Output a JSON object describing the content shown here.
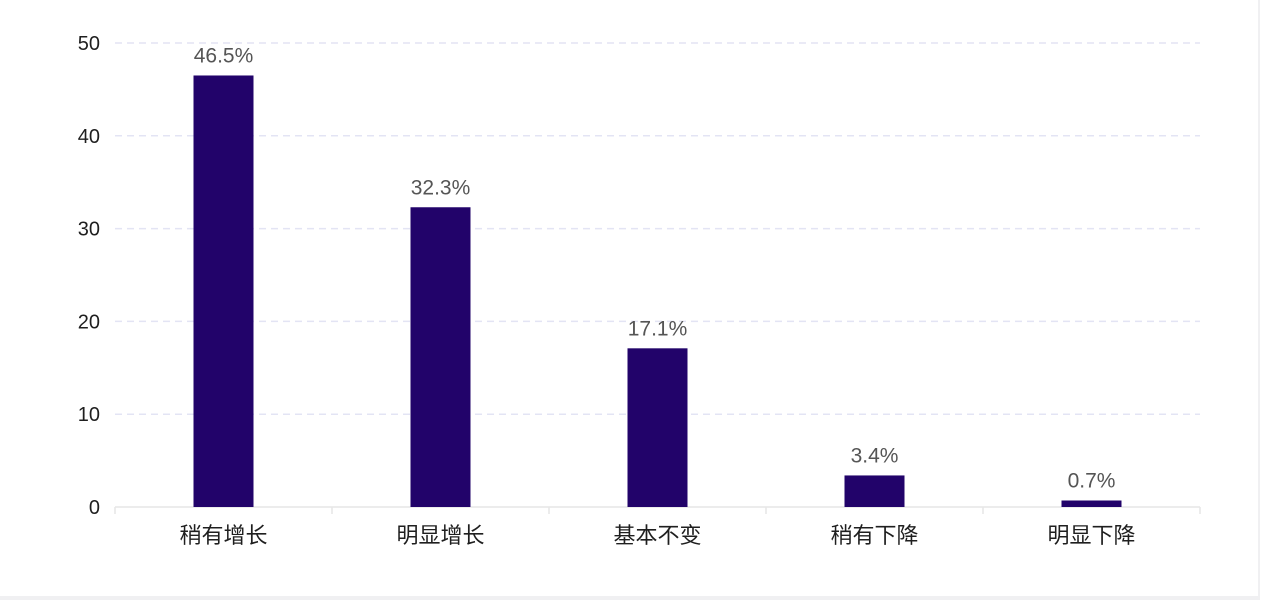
{
  "chart_data": {
    "type": "bar",
    "categories": [
      "稍有增长",
      "明显增长",
      "基本不变",
      "稍有下降",
      "明显下降"
    ],
    "values": [
      46.5,
      32.3,
      17.1,
      3.4,
      0.7
    ],
    "data_labels": [
      "46.5%",
      "32.3%",
      "17.1%",
      "3.4%",
      "0.7%"
    ],
    "title": "",
    "xlabel": "",
    "ylabel": "",
    "ylim": [
      0,
      50
    ],
    "yticks": [
      0,
      10,
      20,
      30,
      40,
      50
    ],
    "grid": true,
    "legend": "none",
    "colors": {
      "bar": "#22036a",
      "grid": "#e3e4f4",
      "axis": "#e6e6e6"
    }
  }
}
